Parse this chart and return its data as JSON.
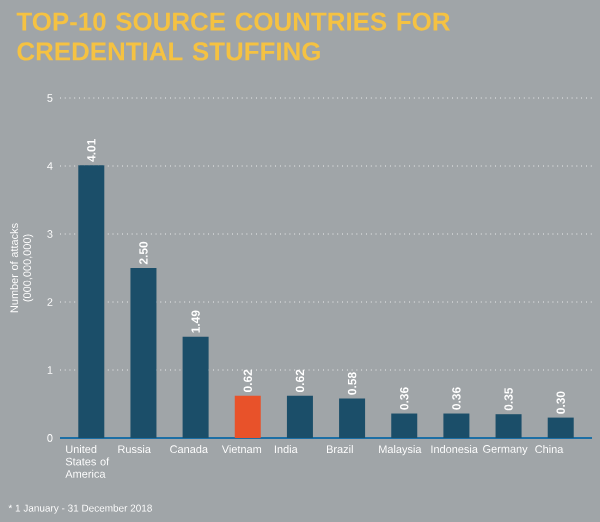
{
  "chart_data": {
    "type": "bar",
    "title": "TOP-10 SOURCE COUNTRIES FOR CREDENTIAL STUFFING",
    "ylabel": "Number of attacks (000,000,000)",
    "categories": [
      "United States of America",
      "Russia",
      "Canada",
      "Vietnam",
      "India",
      "Brazil",
      "Malaysia",
      "Indonesia",
      "Germany",
      "China"
    ],
    "values": [
      4.01,
      2.5,
      1.49,
      0.62,
      0.62,
      0.58,
      0.36,
      0.36,
      0.35,
      0.3
    ],
    "value_labels": [
      "4.01",
      "2.50",
      "1.49",
      "0.62",
      "0.62",
      "0.58",
      "0.36",
      "0.36",
      "0.35",
      "0.30"
    ],
    "colors": [
      "#1b4e69",
      "#1b4e69",
      "#1b4e69",
      "#e8522a",
      "#1b4e69",
      "#1b4e69",
      "#1b4e69",
      "#1b4e69",
      "#1b4e69",
      "#1b4e69"
    ],
    "ylim": [
      0,
      5
    ],
    "yticks": [
      0,
      1,
      2,
      3,
      4,
      5
    ],
    "grid": "y",
    "annotations": [
      "* 1 January - 31 December 2018"
    ]
  }
}
